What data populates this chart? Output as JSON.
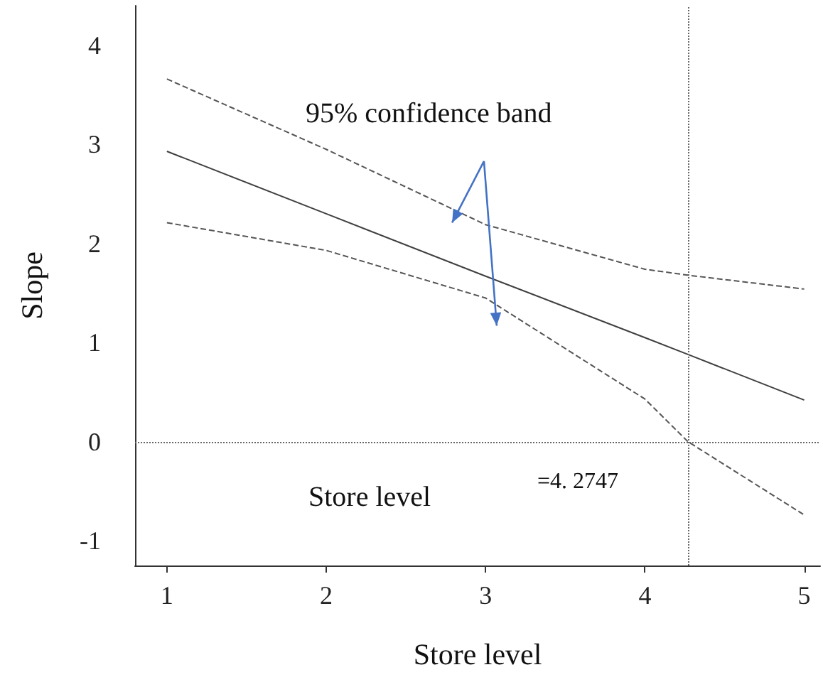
{
  "chart_data": {
    "type": "line",
    "xlabel": "Store level",
    "ylabel": "Slope",
    "x": [
      1,
      2,
      3,
      4,
      4.27,
      5
    ],
    "series": [
      {
        "color": "#404040",
        "line_style": "solid",
        "values": [
          2.93,
          2.3,
          1.67,
          1.05,
          0.88,
          0.42
        ]
      },
      {
        "color": "#555555",
        "line_style": "dashed",
        "values": [
          3.66,
          2.95,
          2.19,
          1.74,
          1.68,
          1.54
        ]
      },
      {
        "color": "#555555",
        "line_style": "dashed",
        "values": [
          2.21,
          1.93,
          1.45,
          0.43,
          0.0,
          -0.74
        ]
      }
    ],
    "xlim": [
      0.8,
      5.1
    ],
    "xticks": [
      1,
      2,
      3,
      4,
      5
    ],
    "ylim": [
      -1.25,
      4.4
    ],
    "yticks": [
      -1,
      0,
      1,
      2,
      3,
      4
    ],
    "ref_lines": [
      {
        "axis": "y",
        "value": 0,
        "color": "#666666",
        "line_style": "dotted"
      },
      {
        "axis": "x",
        "value": 4.2747,
        "color": "#666666",
        "line_style": "dotted"
      }
    ],
    "annotations": [
      "95% confidence band",
      "Store level",
      "=4. 2747"
    ],
    "marker": "none",
    "grid": false
  }
}
